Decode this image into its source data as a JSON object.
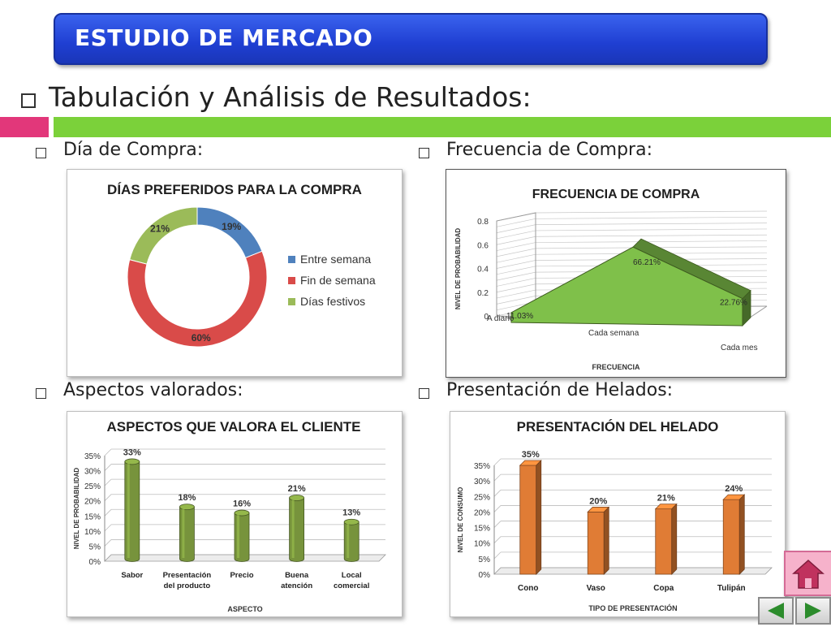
{
  "header": {
    "title": "ESTUDIO DE MERCADO"
  },
  "main_heading": "Tabulación y Análisis de Resultados:",
  "sections": {
    "dia": "Día de Compra:",
    "frecuencia": "Frecuencia de Compra:",
    "aspectos": "Aspectos valorados:",
    "presentacion": "Presentación de Helados:"
  },
  "chart_data": [
    {
      "id": "dias",
      "type": "pie",
      "variant": "doughnut",
      "title": "DÍAS PREFERIDOS PARA LA COMPRA",
      "categories": [
        "Entre semana",
        "Fin de semana",
        "Días festivos"
      ],
      "values": [
        19,
        60,
        21
      ],
      "labels": [
        "19%",
        "60%",
        "21%"
      ],
      "colors": [
        "#4f81bd",
        "#d94b49",
        "#9bbb59"
      ],
      "legend": "right"
    },
    {
      "id": "frecuencia",
      "type": "area",
      "variant": "3d",
      "title": "FRECUENCIA DE COMPRA",
      "xlabel": "FRECUENCIA",
      "ylabel": "NIVEL DE PROBABILIDAD",
      "categories": [
        "A diario",
        "Cada semana",
        "Cada mes"
      ],
      "values": [
        0.1103,
        0.6621,
        0.2276
      ],
      "labels": [
        "11.03%",
        "66.21%",
        "22.76%"
      ],
      "yticks": [
        "0",
        "0.2",
        "0.4",
        "0.6",
        "0.8"
      ],
      "ylim": [
        0,
        0.8
      ],
      "color": "#7fc04a",
      "grid": true
    },
    {
      "id": "aspectos",
      "type": "bar",
      "variant": "3d-cylinder",
      "title": "ASPECTOS QUE VALORA EL CLIENTE",
      "xlabel": "ASPECTO",
      "ylabel": "NIVEL DE PROBABILIDAD",
      "categories": [
        [
          "Sabor"
        ],
        [
          "Presentación",
          "del producto"
        ],
        [
          "Precio"
        ],
        [
          "Buena",
          "atención"
        ],
        [
          "Local",
          "comercial"
        ]
      ],
      "values": [
        33,
        18,
        16,
        21,
        13
      ],
      "labels": [
        "33%",
        "18%",
        "16%",
        "21%",
        "13%"
      ],
      "yticks": [
        "0%",
        "5%",
        "10%",
        "15%",
        "20%",
        "25%",
        "30%",
        "35%"
      ],
      "ylim": [
        0,
        35
      ],
      "color": "#77933c",
      "grid": true
    },
    {
      "id": "presentacion",
      "type": "bar",
      "variant": "3d",
      "title": "PRESENTACIÓN DEL HELADO",
      "xlabel": "TIPO DE PRESENTACIÓN",
      "ylabel": "NIVEL DE CONSUMO",
      "categories": [
        [
          "Cono"
        ],
        [
          "Vaso"
        ],
        [
          "Copa"
        ],
        [
          "Tulipán"
        ]
      ],
      "values": [
        35,
        20,
        21,
        24
      ],
      "labels": [
        "35%",
        "20%",
        "21%",
        "24%"
      ],
      "yticks": [
        "0%",
        "5%",
        "10%",
        "15%",
        "20%",
        "25%",
        "30%",
        "35%"
      ],
      "ylim": [
        0,
        35
      ],
      "color": "#e07c35",
      "grid": true
    }
  ],
  "nav": {
    "home_icon": "home-icon",
    "prev_icon": "triangle-left-icon",
    "next_icon": "triangle-right-icon",
    "accent": "#2c8c2c"
  }
}
